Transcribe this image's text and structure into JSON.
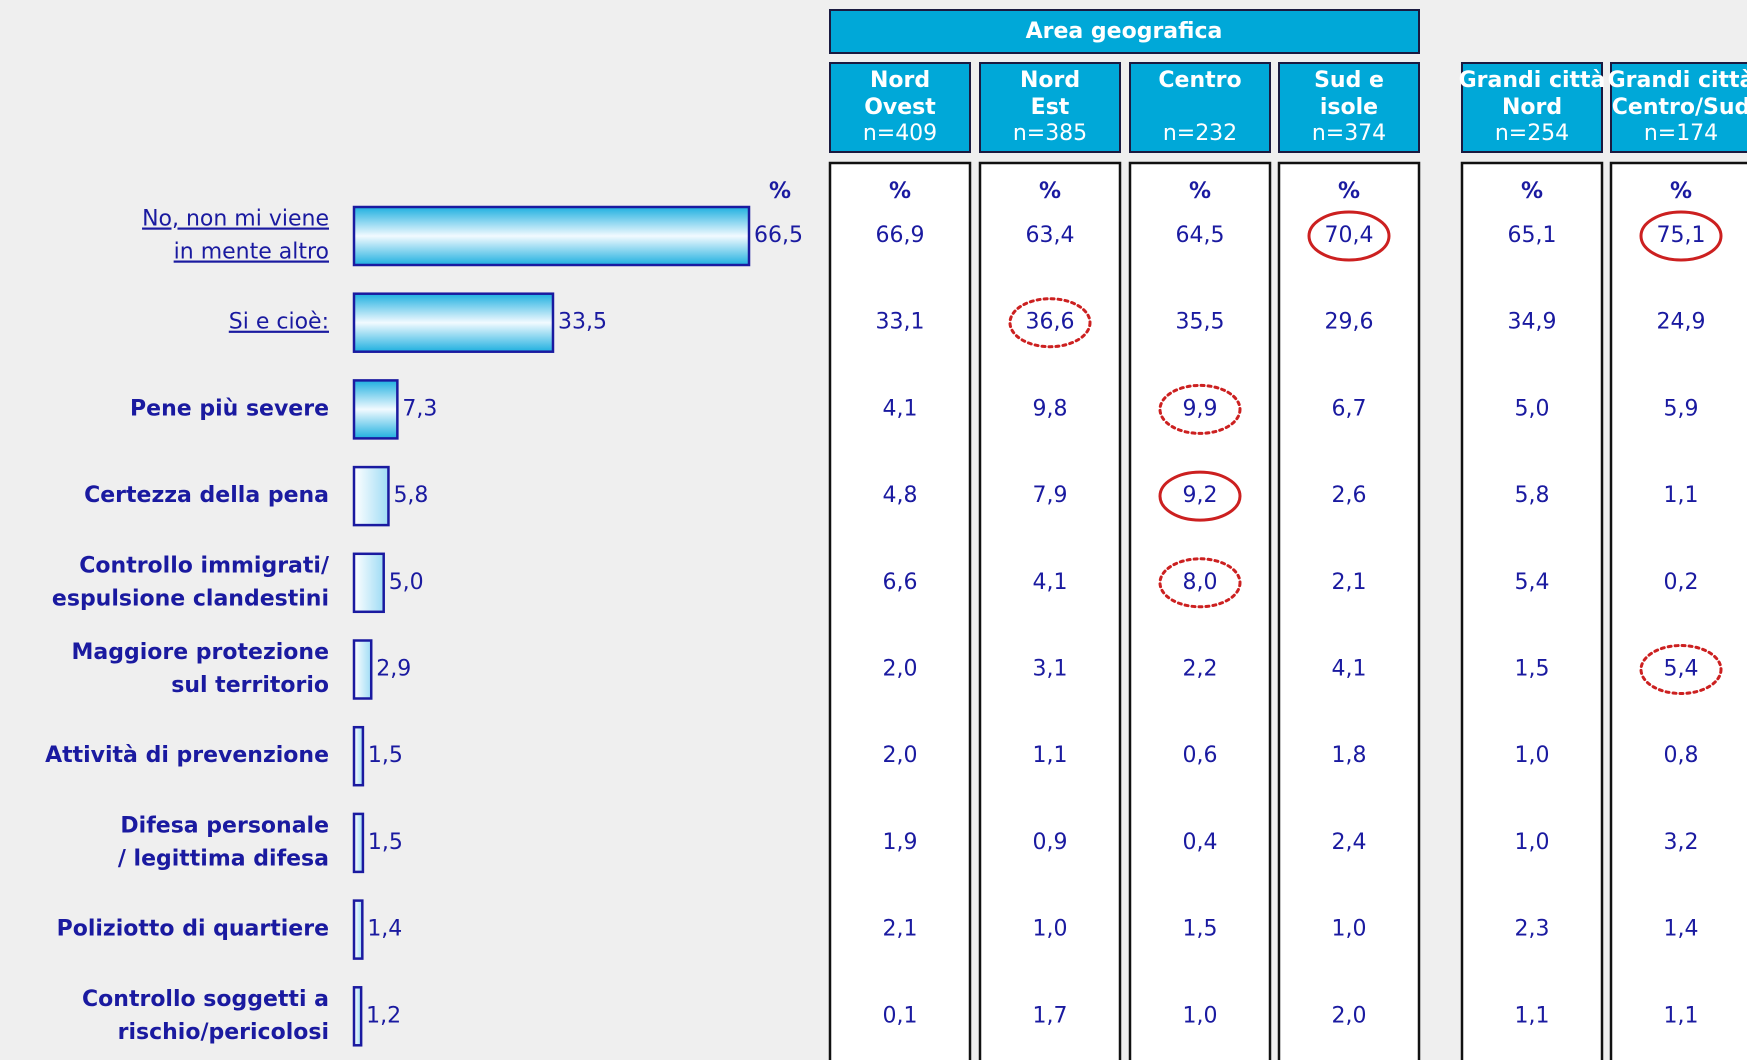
{
  "chart_data": {
    "type": "bar",
    "percent_header": "%",
    "categories": [
      [
        "No, non mi viene",
        "in mente altro"
      ],
      [
        "Si e cioè:"
      ],
      [
        "Pene più severe"
      ],
      [
        "Certezza della pena"
      ],
      [
        "Controllo immigrati/",
        "espulsione clandestini"
      ],
      [
        "Maggiore protezione",
        "sul territorio"
      ],
      [
        "Attività di prevenzione"
      ],
      [
        "Difesa personale",
        "/ legittima difesa"
      ],
      [
        "Poliziotto di quartiere"
      ],
      [
        "Controllo soggetti a",
        "rischio/pericolosi"
      ]
    ],
    "category_style": [
      "underline",
      "underline",
      "bold",
      "bold",
      "bold",
      "bold",
      "bold",
      "bold",
      "bold",
      "bold"
    ],
    "values": [
      66.5,
      33.5,
      7.3,
      5.8,
      5.0,
      2.9,
      1.5,
      1.5,
      1.4,
      1.2
    ],
    "value_labels": [
      "66,5",
      "33,5",
      "7,3",
      "5,8",
      "5,0",
      "2,9",
      "1,5",
      "1,5",
      "1,4",
      "1,2"
    ],
    "color": "#1a1aa0"
  },
  "table": {
    "group_header": "Area geografica",
    "percent_header": "%",
    "columns": [
      {
        "name": [
          "Nord",
          "Ovest"
        ],
        "n": "n=409"
      },
      {
        "name": [
          "Nord",
          "Est"
        ],
        "n": "n=385"
      },
      {
        "name": [
          "Centro"
        ],
        "n": "n=232"
      },
      {
        "name": [
          "Sud e",
          "isole"
        ],
        "n": "n=374"
      },
      {
        "name": [
          "Grandi città",
          "Nord"
        ],
        "n": "n=254"
      },
      {
        "name": [
          "Grandi città",
          "Centro/Sud"
        ],
        "n": "n=174"
      }
    ],
    "rows": [
      [
        "66,9",
        "63,4",
        "64,5",
        "70,4",
        "65,1",
        "75,1"
      ],
      [
        "33,1",
        "36,6",
        "35,5",
        "29,6",
        "34,9",
        "24,9"
      ],
      [
        "4,1",
        "9,8",
        "9,9",
        "6,7",
        "5,0",
        "5,9"
      ],
      [
        "4,8",
        "7,9",
        "9,2",
        "2,6",
        "5,8",
        "1,1"
      ],
      [
        "6,6",
        "4,1",
        "8,0",
        "2,1",
        "5,4",
        "0,2"
      ],
      [
        "2,0",
        "3,1",
        "2,2",
        "4,1",
        "1,5",
        "5,4"
      ],
      [
        "2,0",
        "1,1",
        "0,6",
        "1,8",
        "1,0",
        "0,8"
      ],
      [
        "1,9",
        "0,9",
        "0,4",
        "2,4",
        "1,0",
        "3,2"
      ],
      [
        "2,1",
        "1,0",
        "1,5",
        "1,0",
        "2,3",
        "1,4"
      ],
      [
        "0,1",
        "1,7",
        "1,0",
        "2,0",
        "1,1",
        "1,1"
      ]
    ],
    "highlights": [
      {
        "row": 0,
        "col": 3,
        "style": "solid"
      },
      {
        "row": 0,
        "col": 5,
        "style": "solid"
      },
      {
        "row": 1,
        "col": 1,
        "style": "dotted"
      },
      {
        "row": 2,
        "col": 2,
        "style": "dotted"
      },
      {
        "row": 3,
        "col": 2,
        "style": "solid"
      },
      {
        "row": 4,
        "col": 2,
        "style": "dotted"
      },
      {
        "row": 5,
        "col": 5,
        "style": "dotted"
      }
    ],
    "highlight_color": "#cc2020"
  }
}
